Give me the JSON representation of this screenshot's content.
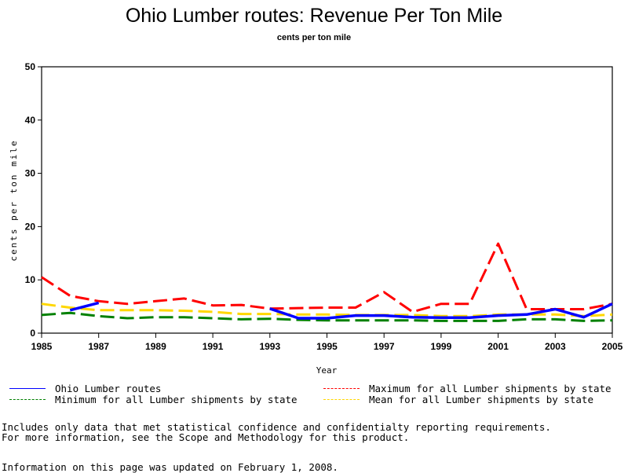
{
  "chart_data": {
    "type": "line",
    "title": "Ohio Lumber routes: Revenue Per Ton Mile",
    "subtitle": "cents per ton mile",
    "xlabel": "Year",
    "ylabel": "cents per ton mile",
    "xlim": [
      1985,
      2005
    ],
    "ylim": [
      0,
      50
    ],
    "x_ticks": [
      1985,
      1987,
      1989,
      1991,
      1993,
      1995,
      1997,
      1999,
      2001,
      2003,
      2005
    ],
    "y_ticks": [
      0,
      10,
      20,
      30,
      40,
      50
    ],
    "grid": false,
    "legend_position": "bottom",
    "x": [
      1985,
      1986,
      1987,
      1988,
      1989,
      1990,
      1991,
      1992,
      1993,
      1994,
      1995,
      1996,
      1997,
      1998,
      1999,
      2000,
      2001,
      2002,
      2003,
      2004,
      2005
    ],
    "series": [
      {
        "name": "Ohio Lumber routes",
        "color": "#0000ff",
        "style": "solid",
        "values": [
          null,
          4.3,
          5.7,
          null,
          null,
          null,
          null,
          null,
          4.6,
          2.8,
          2.8,
          3.3,
          3.3,
          3.0,
          2.9,
          2.9,
          3.3,
          3.5,
          4.5,
          3.0,
          5.5
        ]
      },
      {
        "name": "Maximum for all Lumber shipments by state",
        "color": "#ff0000",
        "style": "dashed",
        "values": [
          10.5,
          7.0,
          6.0,
          5.5,
          6.0,
          6.5,
          5.2,
          5.3,
          4.6,
          4.7,
          4.8,
          4.8,
          7.7,
          4.0,
          5.5,
          5.5,
          16.8,
          4.5,
          4.5,
          4.5,
          5.5
        ]
      },
      {
        "name": "Minimum for all Lumber shipments by state",
        "color": "#008000",
        "style": "dashed",
        "values": [
          3.4,
          3.8,
          3.2,
          2.8,
          3.0,
          3.0,
          2.8,
          2.6,
          2.7,
          2.5,
          2.4,
          2.4,
          2.4,
          2.4,
          2.3,
          2.3,
          2.3,
          2.6,
          2.6,
          2.3,
          2.4
        ]
      },
      {
        "name": "Mean for all Lumber shipments by state",
        "color": "#ffd700",
        "style": "dashed",
        "values": [
          5.5,
          4.8,
          4.3,
          4.3,
          4.3,
          4.2,
          4.0,
          3.6,
          3.6,
          3.5,
          3.5,
          3.4,
          3.4,
          3.4,
          3.2,
          3.2,
          3.5,
          3.5,
          3.5,
          3.2,
          3.5
        ]
      }
    ]
  },
  "legend": [
    {
      "label": "Ohio Lumber routes",
      "color": "#0000ff",
      "style": "solid"
    },
    {
      "label": "Maximum for all Lumber shipments by state",
      "color": "#ff0000",
      "style": "dashed"
    },
    {
      "label": "Minimum for all Lumber shipments by state",
      "color": "#008000",
      "style": "dashed"
    },
    {
      "label": "Mean for all Lumber shipments by state",
      "color": "#ffd700",
      "style": "dashed"
    }
  ],
  "footer": {
    "note_line1": "Includes only data that met statistical confidence and confidentialty reporting requirements.",
    "note_line2": "For more information, see the Scope and Methodology for this product.",
    "updated": "Information on this page was updated on February 1, 2008."
  }
}
